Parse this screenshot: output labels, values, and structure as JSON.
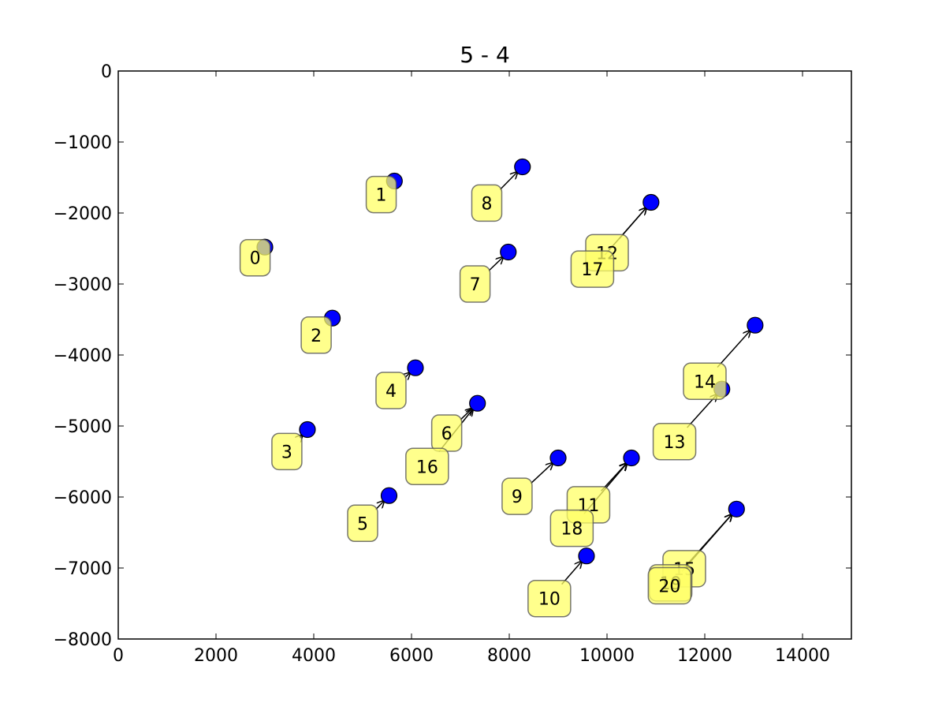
{
  "chart_data": {
    "type": "scatter",
    "title": "5 - 4",
    "xlabel": "",
    "ylabel": "",
    "xlim": [
      0,
      15000
    ],
    "ylim": [
      -8000,
      0
    ],
    "x_ticks": [
      0,
      2000,
      4000,
      6000,
      8000,
      10000,
      12000,
      14000
    ],
    "y_ticks": [
      0,
      -1000,
      -2000,
      -3000,
      -4000,
      -5000,
      -6000,
      -7000,
      -8000
    ],
    "x_tick_labels": [
      "0",
      "2000",
      "4000",
      "6000",
      "8000",
      "10000",
      "12000",
      "14000"
    ],
    "y_tick_labels": [
      "0",
      "−1000",
      "−2000",
      "−3000",
      "−4000",
      "−5000",
      "−6000",
      "−7000",
      "−8000"
    ],
    "grid": false,
    "point_color": "#0000ff",
    "label_box_color": "#ffff66",
    "points": [
      {
        "label": "0",
        "x": 3000,
        "y": -2480,
        "label_x": 2800,
        "label_y": -2630
      },
      {
        "label": "1",
        "x": 5650,
        "y": -1550,
        "label_x": 5380,
        "label_y": -1740
      },
      {
        "label": "2",
        "x": 4380,
        "y": -3480,
        "label_x": 4050,
        "label_y": -3720
      },
      {
        "label": "3",
        "x": 3870,
        "y": -5050,
        "label_x": 3450,
        "label_y": -5360
      },
      {
        "label": "4",
        "x": 6080,
        "y": -4180,
        "label_x": 5580,
        "label_y": -4500
      },
      {
        "label": "5",
        "x": 5540,
        "y": -5980,
        "label_x": 5000,
        "label_y": -6370
      },
      {
        "label": "6",
        "x": 7350,
        "y": -4680,
        "label_x": 6720,
        "label_y": -5100
      },
      {
        "label": "7",
        "x": 7980,
        "y": -2550,
        "label_x": 7300,
        "label_y": -3000
      },
      {
        "label": "8",
        "x": 8270,
        "y": -1350,
        "label_x": 7540,
        "label_y": -1860
      },
      {
        "label": "9",
        "x": 9000,
        "y": -5450,
        "label_x": 8160,
        "label_y": -5990
      },
      {
        "label": "10",
        "x": 9580,
        "y": -6830,
        "label_x": 8820,
        "label_y": -7430
      },
      {
        "label": "11",
        "x": 10500,
        "y": -5450,
        "label_x": 9620,
        "label_y": -6110
      },
      {
        "label": "12",
        "x": 10900,
        "y": -1850,
        "label_x": 10000,
        "label_y": -2560
      },
      {
        "label": "13",
        "x": 12350,
        "y": -4480,
        "label_x": 11380,
        "label_y": -5220
      },
      {
        "label": "14",
        "x": 13030,
        "y": -3580,
        "label_x": 12000,
        "label_y": -4370
      },
      {
        "label": "15",
        "x": 12650,
        "y": -6170,
        "label_x": 11580,
        "label_y": -7010
      },
      {
        "label": "16",
        "x": 7350,
        "y": -4680,
        "label_x": 6320,
        "label_y": -5570
      },
      {
        "label": "17",
        "x": 10900,
        "y": -1850,
        "label_x": 9700,
        "label_y": -2790
      },
      {
        "label": "18",
        "x": 10500,
        "y": -5450,
        "label_x": 9280,
        "label_y": -6440
      },
      {
        "label": "19",
        "x": 12650,
        "y": -6170,
        "label_x": 11300,
        "label_y": -7210
      },
      {
        "label": "20",
        "x": 12650,
        "y": -6170,
        "label_x": 11280,
        "label_y": -7250
      }
    ]
  }
}
